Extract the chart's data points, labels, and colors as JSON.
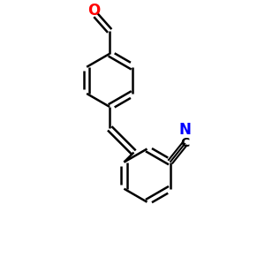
{
  "bg_color": "#ffffff",
  "bond_color": "#000000",
  "O_color": "#ff0000",
  "N_color": "#0000ff",
  "linewidth": 1.8,
  "fig_size": [
    3.0,
    3.0
  ],
  "dpi": 100,
  "xlim": [
    0,
    10
  ],
  "ylim": [
    0,
    10
  ]
}
